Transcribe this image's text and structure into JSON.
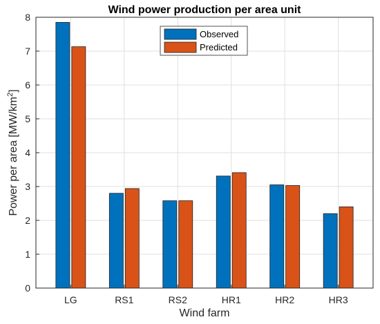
{
  "chart_data": {
    "type": "bar",
    "title": "Wind power production per area unit",
    "xlabel": "Wind farm",
    "ylabel_main": "Power per area [MW/km",
    "ylabel_sup": "2",
    "ylabel_tail": "]",
    "categories": [
      "LG",
      "RS1",
      "RS2",
      "HR1",
      "HR2",
      "HR3"
    ],
    "series": [
      {
        "name": "Observed",
        "color": "#0072BD",
        "values": [
          7.85,
          2.8,
          2.58,
          3.31,
          3.05,
          2.2
        ]
      },
      {
        "name": "Predicted",
        "color": "#D95319",
        "values": [
          7.13,
          2.94,
          2.58,
          3.41,
          3.03,
          2.4
        ]
      }
    ],
    "ylim": [
      0,
      8
    ],
    "yticks": [
      0,
      1,
      2,
      3,
      4,
      5,
      6,
      7,
      8
    ],
    "grid": true,
    "legend_position": "top-center"
  }
}
